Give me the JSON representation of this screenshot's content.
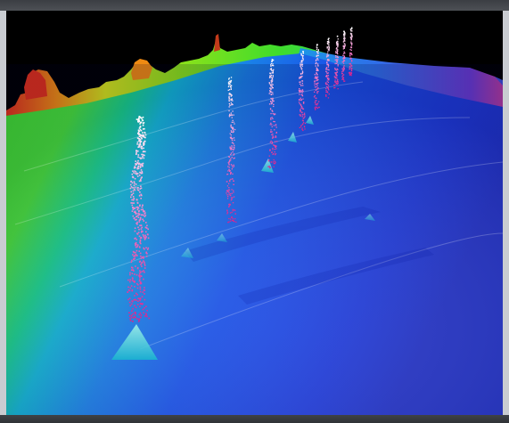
{
  "image": {
    "subject": "3d-bathymetry-render",
    "colors": {
      "background": "#000000",
      "frame": "#4a4d52",
      "side_panel": "#c9ccd1",
      "deep": "#1e2cc6",
      "mid_deep": "#1a52e8",
      "cyan": "#12b7d8",
      "green": "#3fdc2c",
      "yellow": "#d6e41a",
      "orange": "#ef8a12",
      "red": "#e0301a",
      "plume_top": "#ffffff",
      "plume_bottom": "#e0208a"
    },
    "plumes": [
      {
        "name": "plume-1"
      },
      {
        "name": "plume-2"
      },
      {
        "name": "plume-3"
      },
      {
        "name": "plume-4"
      },
      {
        "name": "plume-5"
      },
      {
        "name": "plume-6"
      },
      {
        "name": "plume-7"
      },
      {
        "name": "plume-8"
      },
      {
        "name": "plume-9"
      }
    ]
  }
}
